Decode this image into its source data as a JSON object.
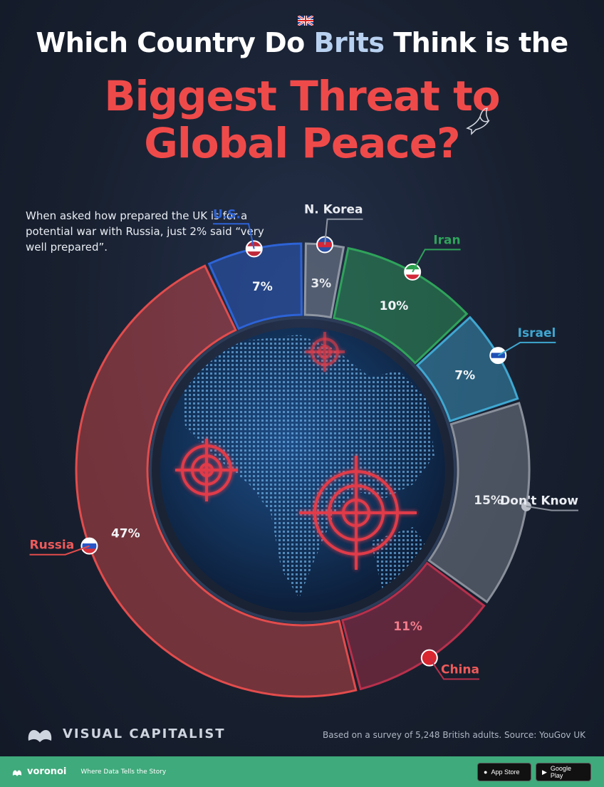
{
  "header": {
    "title_pre": "Which Country Do ",
    "title_highlight": "Brits",
    "title_post": " Think is the",
    "title_line2": "Biggest Threat to",
    "title_line3": "Global Peace?"
  },
  "note": "When asked how prepared the UK is for a potential war with Russia, just 2% said “very well prepared”.",
  "chart_data": {
    "type": "pie",
    "style": "donut",
    "title": "Which Country Do Brits Think is the Biggest Threat to Global Peace?",
    "unit": "%",
    "slices": [
      {
        "label": "Russia",
        "value": 47,
        "value_label": "47%",
        "color": "#e24c4c"
      },
      {
        "label": "U.S.",
        "value": 7,
        "value_label": "7%",
        "color": "#2d63d6"
      },
      {
        "label": "N. Korea",
        "value": 3,
        "value_label": "3%",
        "color": "#8e96a3"
      },
      {
        "label": "Iran",
        "value": 10,
        "value_label": "10%",
        "color": "#2fa35a"
      },
      {
        "label": "Israel",
        "value": 7,
        "value_label": "7%",
        "color": "#3fa7d1"
      },
      {
        "label": "Don't Know",
        "value": 15,
        "value_label": "15%",
        "color": "#8a909b"
      },
      {
        "label": "China",
        "value": 11,
        "value_label": "11%",
        "color": "#b8304c"
      }
    ]
  },
  "footer": {
    "source": "Based on a survey of 5,248 British adults. Source: YouGov UK",
    "brand": "VISUAL CAPITALIST",
    "voronoi": "voronoi",
    "tagline": "Where Data Tells the Story",
    "app_store": "App Store",
    "google_play": "Google Play"
  },
  "colors": {
    "background": "#18202f",
    "title_red": "#ef4a4a",
    "footer_green": "#3faa7b"
  }
}
